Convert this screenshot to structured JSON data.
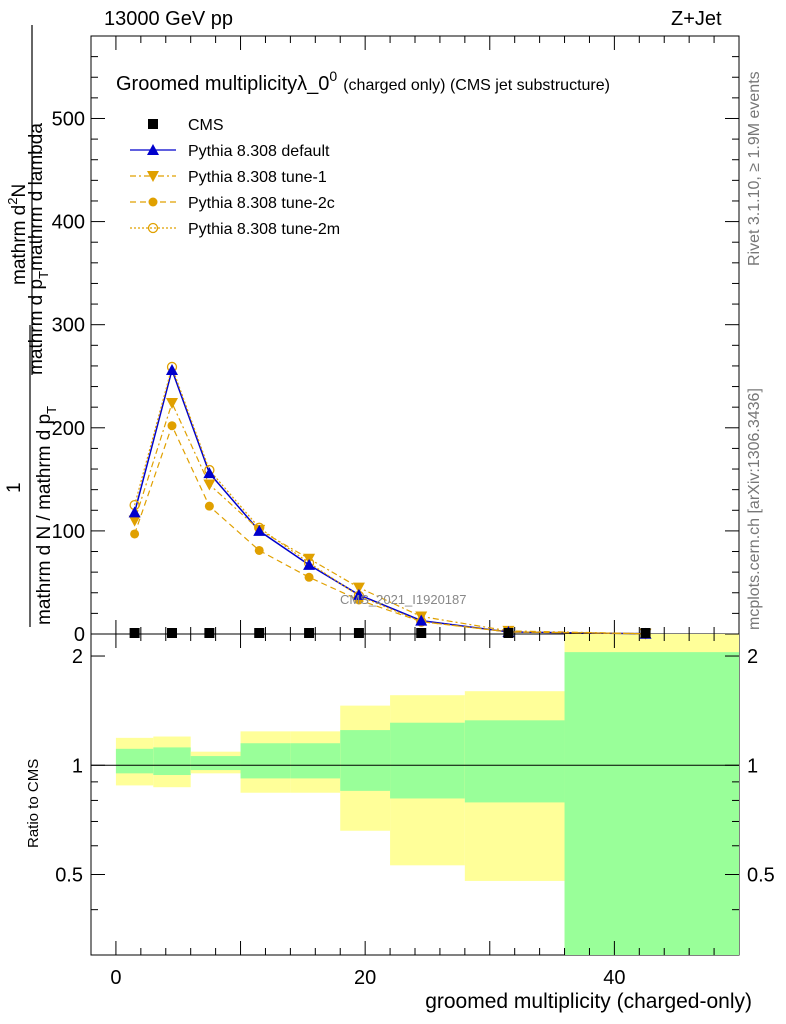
{
  "header": {
    "left": "13000 GeV pp",
    "right": "Z+Jet"
  },
  "side_labels": {
    "rivet": "Rivet 3.1.10, ≥ 1.9M events",
    "mcplots": "mcplots.cern.ch [arXiv:1306.3436]"
  },
  "chart_data": {
    "type": "line",
    "title_main": "Groomed multiplicityλ_0",
    "title_sup": "0",
    "title_sub": "(charged only) (CMS jet substructure)",
    "watermark": "CMS_2021_I1920187",
    "ylabel_main_numerator": "mathrm d",
    "ylabel_main_numerator_sup": "2",
    "ylabel_main_numerator_n": "N",
    "ylabel_main_denominator": "mathrm d p",
    "ylabel_main_denominator_sub": "T",
    "ylabel_main_denominator_tail": "mathrm d lambda",
    "ylabel_main_prefix": "1",
    "ylabel_main_prefix_den": "mathrm d N / mathrm d p",
    "ylabel_ratio": "Ratio to CMS",
    "xlabel": "groomed multiplicity (charged-only)",
    "xlim": [
      -2,
      50
    ],
    "ylim": [
      0,
      580
    ],
    "ratio_ylim": [
      0.3,
      2.3
    ],
    "main_yticks": [
      0,
      100,
      200,
      300,
      400,
      500
    ],
    "xticks": [
      0,
      20,
      40
    ],
    "ratio_yticks": [
      0.5,
      1,
      2
    ],
    "ratio_ytick_labels": [
      "0.5",
      "1",
      "2"
    ],
    "bins": [
      [
        0,
        3
      ],
      [
        3,
        6
      ],
      [
        6,
        10
      ],
      [
        10,
        14
      ],
      [
        14,
        18
      ],
      [
        18,
        22
      ],
      [
        22,
        28
      ],
      [
        28,
        36
      ],
      [
        36,
        50
      ]
    ],
    "x": [
      1.5,
      4.5,
      7.5,
      11.5,
      15.5,
      19.5,
      24.5,
      31.5,
      42.5
    ],
    "series": [
      {
        "name": "CMS",
        "color": "#000000",
        "marker": "square",
        "values": [
          0,
          0,
          0,
          0,
          0,
          0,
          0,
          0,
          0
        ]
      },
      {
        "name": "Pythia 8.308 default",
        "color": "#0000cc",
        "marker": "triangle-up",
        "values": [
          118,
          256,
          156,
          100,
          67,
          38,
          13,
          2,
          0.3
        ]
      },
      {
        "name": "Pythia 8.308 tune-1",
        "color": "#e0a000",
        "marker": "triangle-down",
        "values": [
          110,
          224,
          145,
          101,
          73,
          45,
          17,
          3,
          0.3
        ]
      },
      {
        "name": "Pythia 8.308 tune-2c",
        "color": "#e0a000",
        "marker": "circle-filled",
        "values": [
          97,
          202,
          124,
          81,
          55,
          33,
          12,
          2,
          0.3
        ]
      },
      {
        "name": "Pythia 8.308 tune-2m",
        "color": "#e0a000",
        "marker": "circle-open",
        "values": [
          125,
          259,
          159,
          103,
          69,
          37,
          12,
          2,
          0.3
        ]
      }
    ],
    "ratio_bands": {
      "yellow": [
        [
          0.88,
          1.19
        ],
        [
          0.87,
          1.2
        ],
        [
          0.95,
          1.09
        ],
        [
          0.84,
          1.24
        ],
        [
          0.84,
          1.24
        ],
        [
          0.66,
          1.46
        ],
        [
          0.53,
          1.56
        ],
        [
          0.48,
          1.6
        ],
        [
          0.3,
          2.3
        ]
      ],
      "green": [
        [
          0.95,
          1.11
        ],
        [
          0.94,
          1.12
        ],
        [
          0.97,
          1.06
        ],
        [
          0.92,
          1.15
        ],
        [
          0.92,
          1.15
        ],
        [
          0.85,
          1.25
        ],
        [
          0.81,
          1.31
        ],
        [
          0.79,
          1.33
        ],
        [
          0.3,
          2.05
        ]
      ]
    }
  }
}
